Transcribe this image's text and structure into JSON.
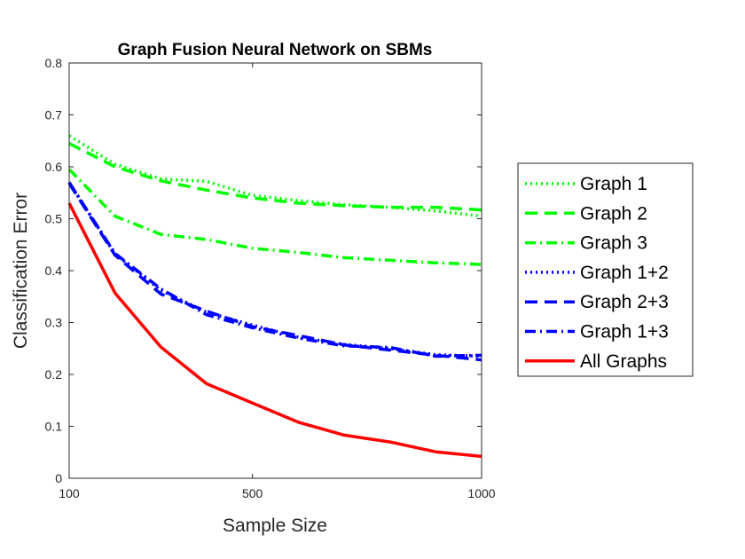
{
  "chart_data": {
    "type": "line",
    "title": "Graph Fusion Neural Network on SBMs",
    "xlabel": "Sample Size",
    "ylabel": "Classification Error",
    "xlim": [
      100,
      1000
    ],
    "ylim": [
      0,
      0.8
    ],
    "xticks": [
      100,
      500,
      1000
    ],
    "yticks": [
      0,
      0.1,
      0.2,
      0.3,
      0.4,
      0.5,
      0.6,
      0.7,
      0.8
    ],
    "grid": false,
    "legend_position": "right",
    "x": [
      100,
      200,
      300,
      400,
      500,
      600,
      700,
      800,
      900,
      1000
    ],
    "series": [
      {
        "name": "Graph 1",
        "color": "#00ff00",
        "dash": "dotted",
        "values": [
          0.66,
          0.605,
          0.577,
          0.572,
          0.545,
          0.535,
          0.527,
          0.522,
          0.515,
          0.505
        ]
      },
      {
        "name": "Graph 2",
        "color": "#00ff00",
        "dash": "dashed",
        "values": [
          0.645,
          0.6,
          0.573,
          0.555,
          0.54,
          0.53,
          0.525,
          0.522,
          0.522,
          0.517
        ]
      },
      {
        "name": "Graph 3",
        "color": "#00ff00",
        "dash": "dashdot",
        "values": [
          0.595,
          0.505,
          0.47,
          0.46,
          0.443,
          0.435,
          0.425,
          0.42,
          0.415,
          0.412
        ]
      },
      {
        "name": "Graph 1+2",
        "color": "#0000ff",
        "dash": "dotted",
        "values": [
          0.57,
          0.432,
          0.362,
          0.32,
          0.295,
          0.272,
          0.258,
          0.25,
          0.238,
          0.235
        ]
      },
      {
        "name": "Graph 2+3",
        "color": "#0000ff",
        "dash": "dashed",
        "values": [
          0.568,
          0.43,
          0.355,
          0.322,
          0.292,
          0.275,
          0.257,
          0.247,
          0.237,
          0.228
        ]
      },
      {
        "name": "Graph 1+3",
        "color": "#0000ff",
        "dash": "dashdot",
        "values": [
          0.57,
          0.433,
          0.365,
          0.315,
          0.29,
          0.27,
          0.255,
          0.252,
          0.235,
          0.237
        ]
      },
      {
        "name": "All Graphs",
        "color": "#ff0000",
        "dash": "solid",
        "values": [
          0.53,
          0.357,
          0.253,
          0.182,
          0.145,
          0.108,
          0.083,
          0.07,
          0.051,
          0.042
        ]
      }
    ]
  }
}
